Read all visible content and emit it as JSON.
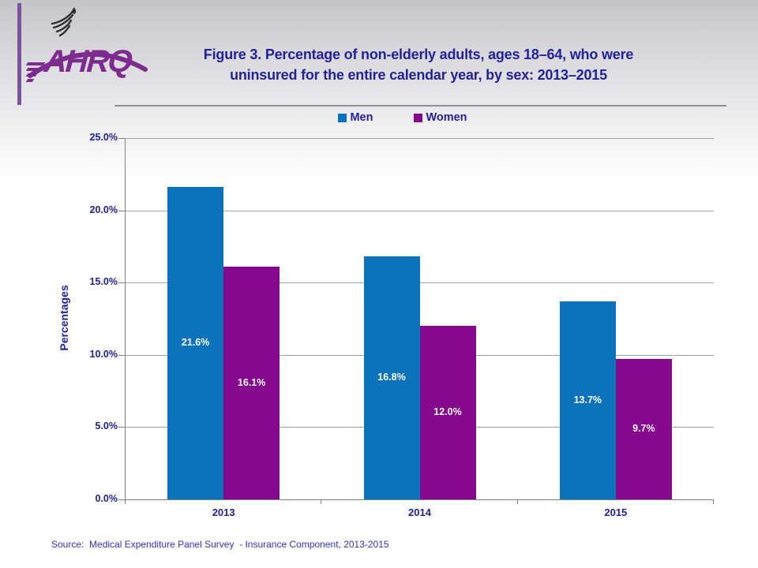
{
  "logo": {
    "org": "AHRQ",
    "eagle_icon": "hhs-eagle"
  },
  "title": {
    "line1": "Figure 3. Percentage of non-elderly adults, ages 18–64, who were",
    "line2": "uninsured for the entire calendar year, by sex: 2013–2015"
  },
  "legend": {
    "items": [
      {
        "label": "Men",
        "color": "#0D72BC"
      },
      {
        "label": "Women",
        "color": "#84098C"
      }
    ]
  },
  "chart_data": {
    "type": "bar",
    "title": "Percentage of non-elderly adults, ages 18–64, uninsured entire calendar year, by sex",
    "categories": [
      "2013",
      "2014",
      "2015"
    ],
    "series": [
      {
        "name": "Men",
        "color": "#0D72BC",
        "values": [
          21.6,
          16.8,
          13.7
        ],
        "labels": [
          "21.6%",
          "16.8%",
          "13.7%"
        ]
      },
      {
        "name": "Women",
        "color": "#84098C",
        "values": [
          16.1,
          12.0,
          9.7
        ],
        "labels": [
          "16.1%",
          "12.0%",
          "9.7%"
        ]
      }
    ],
    "xlabel": "",
    "ylabel": "Percentages",
    "ylim": [
      0,
      25
    ],
    "ytick_values": [
      0,
      5,
      10,
      15,
      20,
      25
    ],
    "yticks": [
      "0.0%",
      "5.0%",
      "10.0%",
      "15.0%",
      "20.0%",
      "25.0%"
    ],
    "grid": true,
    "legend_position": "top"
  },
  "source": {
    "text": "Source:  Medical Expenditure Panel Survey  - Insurance Component, 2013-2015"
  },
  "colors": {
    "title_text": "#21219B",
    "axis_text": "#21219B",
    "source_text": "#3333CC",
    "axis_line": "#808080",
    "gridline": "#A3A3A3",
    "bar_label": "#FFFFFF",
    "logo_purple": "#7D2B8F",
    "left_stripe": "#7A539F",
    "eagle_dark": "#2E2E33"
  }
}
